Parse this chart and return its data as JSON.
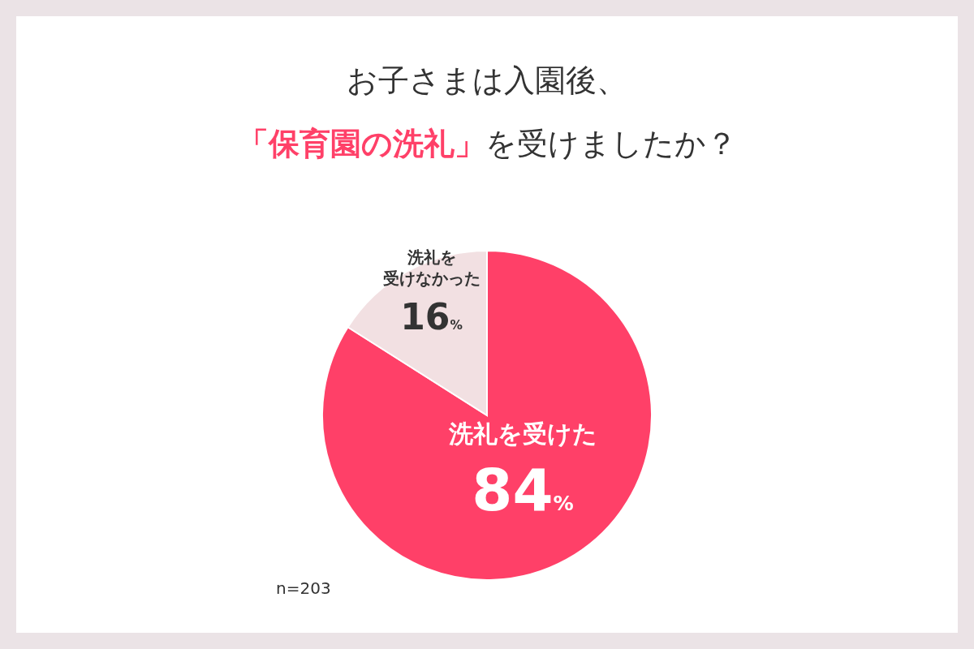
{
  "chart_data": {
    "type": "pie",
    "title": "お子さまは入園後、「保育園の洗礼」を受けましたか？",
    "categories": [
      "洗礼を受けた",
      "洗礼を受けなかった"
    ],
    "values": [
      84,
      16
    ],
    "colors": [
      "#ff4068",
      "#f2e0e2"
    ],
    "value_labels": [
      "84%",
      "16%"
    ],
    "annotations": [
      "n=203"
    ]
  }
}
